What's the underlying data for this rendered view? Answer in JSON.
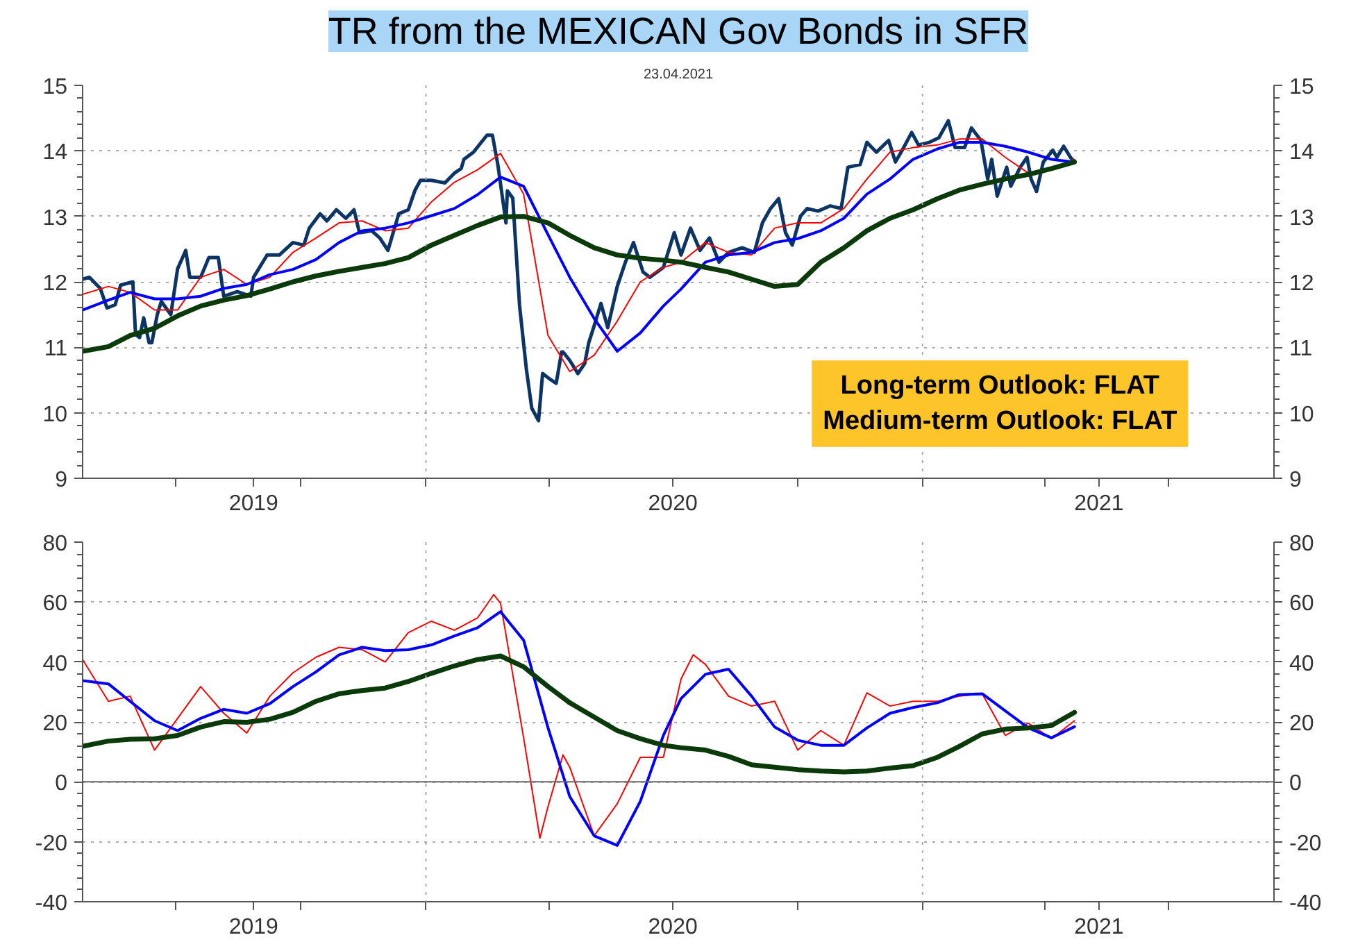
{
  "chart_data": [
    {
      "type": "line",
      "title": "TR from the MEXICAN Gov Bonds in SFR",
      "subtitle": "23.04.2021",
      "annotations": [
        "Long-term Outlook: FLAT",
        "Medium-term Outlook: FLAT"
      ],
      "x": [
        "2019-04-23",
        "2019-05-12",
        "2019-05-28",
        "2019-06-15",
        "2019-07-02",
        "2019-07-19",
        "2019-08-05",
        "2019-08-22",
        "2019-09-08",
        "2019-09-25",
        "2019-10-12",
        "2019-10-29",
        "2019-11-15",
        "2019-12-02",
        "2019-12-19",
        "2020-01-05",
        "2020-01-22",
        "2020-02-08",
        "2020-02-25",
        "2020-03-13",
        "2020-03-31",
        "2020-04-16",
        "2020-05-04",
        "2020-05-21",
        "2020-06-07",
        "2020-06-24",
        "2020-07-07",
        "2020-07-25",
        "2020-08-11",
        "2020-08-28",
        "2020-09-14",
        "2020-10-01",
        "2020-10-18",
        "2020-11-04",
        "2020-11-21",
        "2020-12-08",
        "2020-12-25",
        "2021-01-12",
        "2021-01-28",
        "2021-02-14",
        "2021-03-03",
        "2021-03-20",
        "2021-04-06",
        "2021-04-23"
      ],
      "series": [
        {
          "color": "#0c3566",
          "x": [
            "2019-04-23",
            "2019-04-28",
            "2019-05-06",
            "2019-05-11",
            "2019-05-17",
            "2019-05-21",
            "2019-05-30",
            "2019-06-01",
            "2019-06-04",
            "2019-06-07",
            "2019-06-11",
            "2019-06-13",
            "2019-06-17",
            "2019-06-20",
            "2019-06-27",
            "2019-07-02",
            "2019-07-08",
            "2019-07-11",
            "2019-07-19",
            "2019-07-25",
            "2019-08-01",
            "2019-08-05",
            "2019-08-15",
            "2019-08-25",
            "2019-08-27",
            "2019-09-06",
            "2019-09-15",
            "2019-09-25",
            "2019-10-03",
            "2019-10-07",
            "2019-10-15",
            "2019-10-20",
            "2019-10-27",
            "2019-11-03",
            "2019-11-09",
            "2019-11-13",
            "2019-11-22",
            "2019-11-28",
            "2019-12-04",
            "2019-12-12",
            "2019-12-19",
            "2019-12-24",
            "2019-12-28",
            "2020-01-05",
            "2020-01-15",
            "2020-01-22",
            "2020-01-27",
            "2020-01-29",
            "2020-02-05",
            "2020-02-15",
            "2020-02-19",
            "2020-02-23",
            "2020-02-29",
            "2020-03-01",
            "2020-03-05",
            "2020-03-10",
            "2020-03-15",
            "2020-03-19",
            "2020-03-24",
            "2020-03-27",
            "2020-04-01",
            "2020-04-06",
            "2020-04-10",
            "2020-04-11",
            "2020-04-16",
            "2020-04-22",
            "2020-04-27",
            "2020-04-30",
            "2020-05-04",
            "2020-05-09",
            "2020-05-14",
            "2020-05-21",
            "2020-05-27",
            "2020-06-02",
            "2020-06-09",
            "2020-06-14",
            "2020-06-24",
            "2020-07-02",
            "2020-07-07",
            "2020-07-14",
            "2020-07-21",
            "2020-07-28",
            "2020-08-04",
            "2020-08-11",
            "2020-08-21",
            "2020-08-30",
            "2020-09-05",
            "2020-09-11",
            "2020-09-17",
            "2020-09-22",
            "2020-09-27",
            "2020-10-03",
            "2020-10-08",
            "2020-10-16",
            "2020-10-25",
            "2020-11-02",
            "2020-11-07",
            "2020-11-16",
            "2020-11-21",
            "2020-11-28",
            "2020-12-07",
            "2020-12-12",
            "2020-12-17",
            "2020-12-24",
            "2020-12-29",
            "2021-01-06",
            "2021-01-13",
            "2021-01-20",
            "2021-01-25",
            "2021-02-01",
            "2021-02-06",
            "2021-02-13",
            "2021-02-18",
            "2021-02-21",
            "2021-02-25",
            "2021-03-04",
            "2021-03-07",
            "2021-03-14",
            "2021-03-19",
            "2021-03-22",
            "2021-03-26",
            "2021-03-31",
            "2021-04-07",
            "2021-04-10",
            "2021-04-15",
            "2021-04-20",
            "2021-04-23"
          ],
          "values": [
            12.04,
            12.07,
            11.9,
            11.6,
            11.65,
            11.95,
            12.0,
            11.2,
            11.15,
            11.45,
            11.07,
            11.07,
            11.5,
            11.7,
            11.5,
            12.2,
            12.48,
            12.07,
            12.07,
            12.37,
            12.37,
            11.78,
            11.85,
            11.78,
            12.07,
            12.41,
            12.41,
            12.6,
            12.56,
            12.82,
            13.04,
            12.93,
            13.1,
            12.97,
            13.1,
            12.75,
            12.78,
            12.67,
            12.48,
            13.04,
            13.1,
            13.4,
            13.55,
            13.55,
            13.51,
            13.66,
            13.73,
            13.87,
            13.98,
            14.24,
            14.24,
            13.79,
            12.9,
            13.39,
            13.28,
            11.64,
            10.67,
            10.07,
            9.88,
            10.6,
            10.52,
            10.45,
            10.93,
            10.93,
            10.8,
            10.6,
            10.75,
            11.07,
            11.33,
            11.67,
            11.3,
            11.93,
            12.3,
            12.6,
            12.15,
            12.07,
            12.22,
            12.75,
            12.41,
            12.82,
            12.48,
            12.67,
            12.3,
            12.45,
            12.52,
            12.45,
            12.9,
            13.12,
            13.27,
            12.75,
            12.56,
            13.0,
            13.12,
            13.08,
            13.16,
            13.12,
            13.75,
            13.79,
            14.13,
            13.98,
            14.16,
            13.83,
            14.01,
            14.28,
            14.09,
            14.13,
            14.2,
            14.46,
            14.05,
            14.05,
            14.35,
            14.16,
            13.57,
            13.87,
            13.31,
            13.75,
            13.46,
            13.75,
            13.9,
            13.57,
            13.38,
            13.83,
            14.01,
            13.9,
            14.07,
            13.9,
            13.83
          ]
        },
        {
          "color": "#ff0000",
          "values": [
            11.81,
            11.93,
            11.84,
            11.57,
            11.57,
            12.07,
            12.19,
            11.96,
            12.07,
            12.45,
            12.67,
            12.9,
            12.93,
            12.78,
            12.82,
            13.22,
            13.52,
            13.71,
            13.96,
            13.34,
            11.18,
            10.63,
            10.88,
            11.4,
            12.0,
            12.22,
            12.3,
            12.6,
            12.45,
            12.41,
            12.82,
            12.9,
            12.9,
            13.12,
            13.57,
            13.98,
            14.05,
            14.09,
            14.18,
            14.18,
            13.9,
            13.66,
            13.72,
            13.87
          ]
        },
        {
          "color": "#0000ff",
          "values": [
            11.57,
            11.72,
            11.84,
            11.74,
            11.74,
            11.78,
            11.9,
            11.96,
            12.11,
            12.19,
            12.34,
            12.6,
            12.78,
            12.82,
            12.9,
            13.01,
            13.12,
            13.33,
            13.6,
            13.46,
            12.72,
            12.07,
            11.44,
            10.94,
            11.22,
            11.63,
            11.89,
            12.3,
            12.41,
            12.45,
            12.6,
            12.66,
            12.78,
            12.97,
            13.34,
            13.57,
            13.87,
            14.03,
            14.13,
            14.13,
            14.07,
            13.98,
            13.87,
            13.83
          ]
        },
        {
          "color": "#0a3a0a",
          "values": [
            10.94,
            11.01,
            11.18,
            11.29,
            11.48,
            11.63,
            11.72,
            11.79,
            11.89,
            12.0,
            12.09,
            12.16,
            12.22,
            12.28,
            12.37,
            12.56,
            12.71,
            12.86,
            12.99,
            13.0,
            12.9,
            12.71,
            12.52,
            12.41,
            12.36,
            12.33,
            12.3,
            12.22,
            12.15,
            12.04,
            11.93,
            11.96,
            12.3,
            12.52,
            12.78,
            12.97,
            13.1,
            13.27,
            13.4,
            13.49,
            13.57,
            13.64,
            13.73,
            13.83
          ]
        }
      ],
      "xlim": [
        "2019-04-23",
        "2021-09-17"
      ],
      "xticks": [
        {
          "value": "2019-07-01",
          "label": null
        },
        {
          "value": "2019-08-27",
          "label": "2019"
        },
        {
          "value": "2019-10-01",
          "label": null
        },
        {
          "value": "2020-01-01",
          "label": null
        },
        {
          "value": "2020-04-01",
          "label": null
        },
        {
          "value": "2020-07-01",
          "label": "2020"
        },
        {
          "value": "2020-10-01",
          "label": null
        },
        {
          "value": "2021-01-01",
          "label": null
        },
        {
          "value": "2021-04-01",
          "label": null
        },
        {
          "value": "2021-05-11",
          "label": "2021"
        },
        {
          "value": "2021-07-01",
          "label": null
        }
      ],
      "ylim": [
        9,
        15
      ],
      "yticks": [
        9,
        10,
        11,
        12,
        13,
        14,
        15
      ],
      "y2lim": [
        9,
        15
      ],
      "y2ticks": [
        9,
        10,
        11,
        12,
        13,
        14,
        15
      ],
      "grid": "y",
      "ref_lines": [
        {
          "axis": "x",
          "value": "2020-01-01",
          "color": "#aaaaaa",
          "line_style": "dotted"
        },
        {
          "axis": "x",
          "value": "2021-01-01",
          "color": "#aaaaaa",
          "line_style": "dotted"
        }
      ]
    },
    {
      "type": "line",
      "x": [
        "2019-04-23",
        "2019-05-12",
        "2019-05-28",
        "2019-06-15",
        "2019-07-02",
        "2019-07-19",
        "2019-08-05",
        "2019-08-22",
        "2019-09-08",
        "2019-09-25",
        "2019-10-12",
        "2019-10-29",
        "2019-11-15",
        "2019-12-02",
        "2019-12-19",
        "2020-01-05",
        "2020-01-22",
        "2020-02-08",
        "2020-02-25",
        "2020-03-13",
        "2020-03-31",
        "2020-04-16",
        "2020-05-04",
        "2020-05-21",
        "2020-06-07",
        "2020-06-24",
        "2020-07-07",
        "2020-07-25",
        "2020-08-11",
        "2020-08-28",
        "2020-09-14",
        "2020-10-01",
        "2020-10-18",
        "2020-11-04",
        "2020-11-21",
        "2020-12-08",
        "2020-12-25",
        "2021-01-12",
        "2021-01-28",
        "2021-02-14",
        "2021-03-03",
        "2021-03-20",
        "2021-04-06",
        "2021-04-23"
      ],
      "series": [
        {
          "color": "#ff0000",
          "x": [
            "2019-04-23",
            "2019-05-12",
            "2019-05-28",
            "2019-06-15",
            "2019-07-02",
            "2019-07-19",
            "2019-08-05",
            "2019-08-22",
            "2019-09-08",
            "2019-09-25",
            "2019-10-12",
            "2019-10-29",
            "2019-11-15",
            "2019-12-02",
            "2019-12-19",
            "2020-01-05",
            "2020-01-22",
            "2020-02-08",
            "2020-02-20",
            "2020-02-25",
            "2020-03-13",
            "2020-03-25",
            "2020-03-31",
            "2020-04-11",
            "2020-04-16",
            "2020-05-04",
            "2020-05-21",
            "2020-06-07",
            "2020-06-24",
            "2020-07-07",
            "2020-07-16",
            "2020-07-25",
            "2020-08-11",
            "2020-08-28",
            "2020-09-14",
            "2020-10-01",
            "2020-10-18",
            "2020-11-04",
            "2020-11-21",
            "2020-12-08",
            "2020-12-25",
            "2021-01-12",
            "2021-01-28",
            "2021-02-14",
            "2021-03-03",
            "2021-03-20",
            "2021-04-06",
            "2021-04-23"
          ],
          "values": [
            40.8,
            26.9,
            28.6,
            10.6,
            21.2,
            31.8,
            22.9,
            16.3,
            28.6,
            36.4,
            41.6,
            44.9,
            44.1,
            40,
            49.8,
            53.6,
            50.6,
            54.7,
            62.5,
            59.6,
            14.7,
            -18.8,
            -8.2,
            9.0,
            4.9,
            -18.0,
            -7.3,
            8.2,
            8.2,
            34.3,
            42.4,
            39.2,
            28.6,
            25.3,
            26.9,
            10.6,
            17.1,
            12.2,
            29.7,
            25.3,
            26.9,
            26.9,
            28.6,
            29.4,
            15.5,
            19.6,
            14.4,
            20.4
          ]
        },
        {
          "color": "#0000ff",
          "values": [
            33.8,
            32.7,
            26.9,
            20.4,
            17.1,
            21.2,
            24.2,
            22.9,
            26.1,
            31.8,
            36.7,
            42.4,
            44.9,
            43.8,
            44.1,
            45.7,
            48.7,
            51.4,
            56.8,
            47.3,
            18.0,
            -4.9,
            -18.0,
            -21.2,
            -6.5,
            15.5,
            27.8,
            35.9,
            37.6,
            28.6,
            18.3,
            13.9,
            12.2,
            12.2,
            18.0,
            22.9,
            24.8,
            26.4,
            29.1,
            29.4,
            23.7,
            18.0,
            14.7,
            18.4
          ]
        },
        {
          "color": "#0a3a0a",
          "values": [
            11.9,
            13.6,
            14.2,
            14.4,
            15.5,
            18.3,
            20.1,
            19.9,
            20.9,
            23.2,
            26.9,
            29.4,
            30.5,
            31.3,
            33.5,
            36.2,
            38.7,
            40.8,
            42.0,
            38.4,
            31.8,
            26.4,
            21.6,
            17.1,
            14.4,
            12.2,
            11.4,
            10.6,
            8.5,
            5.7,
            4.9,
            4.1,
            3.6,
            3.3,
            3.6,
            4.6,
            5.4,
            8.2,
            11.8,
            16.0,
            17.6,
            18.0,
            18.8,
            23.2
          ]
        }
      ],
      "xlim": [
        "2019-04-23",
        "2021-09-17"
      ],
      "xticks": [
        {
          "value": "2019-07-01",
          "label": null
        },
        {
          "value": "2019-08-27",
          "label": "2019"
        },
        {
          "value": "2019-10-01",
          "label": null
        },
        {
          "value": "2020-01-01",
          "label": null
        },
        {
          "value": "2020-04-01",
          "label": null
        },
        {
          "value": "2020-07-01",
          "label": "2020"
        },
        {
          "value": "2020-10-01",
          "label": null
        },
        {
          "value": "2021-01-01",
          "label": null
        },
        {
          "value": "2021-04-01",
          "label": null
        },
        {
          "value": "2021-05-11",
          "label": "2021"
        },
        {
          "value": "2021-07-01",
          "label": null
        }
      ],
      "ylim": [
        -40,
        80
      ],
      "yticks": [
        -40,
        -20,
        0,
        20,
        40,
        60,
        80
      ],
      "y2lim": [
        -40,
        80
      ],
      "y2ticks": [
        -40,
        -20,
        0,
        20,
        40,
        60,
        80
      ],
      "grid": "y",
      "ref_lines": [
        {
          "axis": "x",
          "value": "2020-01-01",
          "color": "#aaaaaa",
          "line_style": "dotted"
        },
        {
          "axis": "x",
          "value": "2021-01-01",
          "color": "#aaaaaa",
          "line_style": "dotted"
        },
        {
          "axis": "y",
          "value": 0,
          "color": "#666666",
          "line_style": "solid"
        }
      ]
    }
  ]
}
